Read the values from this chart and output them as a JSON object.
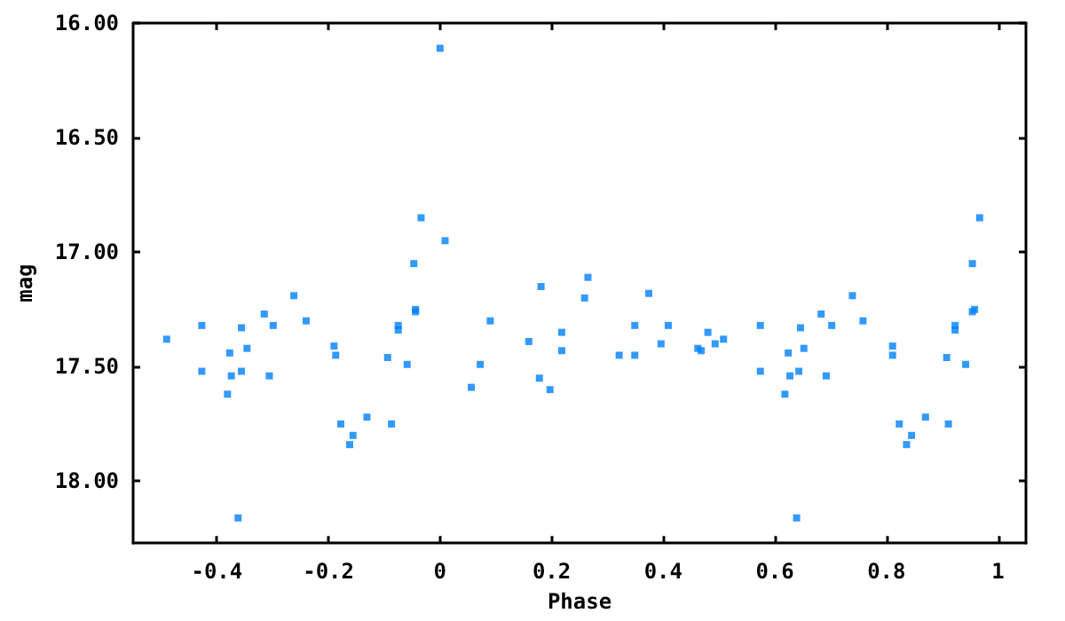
{
  "chart_data": {
    "type": "scatter",
    "xlabel": "Phase",
    "ylabel": "mag",
    "xlim": [
      -0.55,
      1.05
    ],
    "xticks": [
      -0.4,
      -0.2,
      0,
      0.2,
      0.4,
      0.6,
      0.8,
      1
    ],
    "ylim": [
      18.27,
      16
    ],
    "yticks": [
      {
        "value": 16,
        "label": "16.00"
      },
      {
        "value": 16.5,
        "label": "16.50"
      },
      {
        "value": 17,
        "label": "17.00"
      },
      {
        "value": 17.5,
        "label": "17.50"
      },
      {
        "value": 18,
        "label": "18.00"
      }
    ],
    "grid": false,
    "marker": "square",
    "series": [
      {
        "color": "#0080ff",
        "x": [
          -0.49,
          -0.427,
          -0.427,
          -0.381,
          -0.377,
          -0.374,
          -0.356,
          -0.356,
          -0.346,
          -0.362,
          -0.315,
          -0.306,
          -0.299,
          -0.262,
          -0.24,
          -0.19,
          -0.187,
          -0.178,
          -0.162,
          -0.156,
          -0.131,
          -0.094,
          -0.087,
          -0.075,
          -0.075,
          -0.059,
          -0.047,
          -0.044,
          -0.044,
          -0.034,
          0.0,
          0.009,
          0.056,
          0.072,
          0.09,
          0.159,
          0.178,
          0.181,
          0.197,
          0.218,
          0.218,
          0.259,
          0.265,
          0.321,
          0.349,
          0.349,
          0.374,
          0.396,
          0.409,
          0.462,
          0.468,
          0.48,
          0.493,
          0.508,
          0.574,
          0.574,
          0.618,
          0.624,
          0.627,
          0.639,
          0.643,
          0.646,
          0.652,
          0.683,
          0.692,
          0.702,
          0.739,
          0.758,
          0.811,
          0.811,
          0.823,
          0.836,
          0.845,
          0.87,
          0.908,
          0.911,
          0.923,
          0.923,
          0.942,
          0.954,
          0.954,
          0.958,
          0.967
        ],
        "values": [
          17.38,
          17.32,
          17.52,
          17.62,
          17.44,
          17.54,
          17.33,
          17.52,
          17.42,
          18.16,
          17.27,
          17.54,
          17.32,
          17.19,
          17.3,
          17.41,
          17.45,
          17.75,
          17.84,
          17.8,
          17.72,
          17.46,
          17.75,
          17.32,
          17.34,
          17.49,
          17.05,
          17.25,
          17.26,
          16.85,
          16.11,
          16.95,
          17.59,
          17.49,
          17.3,
          17.39,
          17.55,
          17.15,
          17.6,
          17.35,
          17.43,
          17.2,
          17.11,
          17.45,
          17.32,
          17.45,
          17.18,
          17.4,
          17.32,
          17.42,
          17.43,
          17.35,
          17.4,
          17.38,
          17.32,
          17.52,
          17.62,
          17.44,
          17.54,
          18.16,
          17.52,
          17.33,
          17.42,
          17.27,
          17.54,
          17.32,
          17.19,
          17.3,
          17.41,
          17.45,
          17.75,
          17.84,
          17.8,
          17.72,
          17.46,
          17.75,
          17.32,
          17.34,
          17.49,
          17.05,
          17.26,
          17.25,
          16.85
        ]
      }
    ]
  }
}
